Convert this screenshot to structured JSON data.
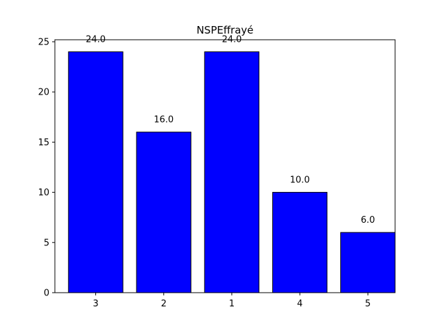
{
  "chart_data": {
    "type": "bar",
    "title": "NSPEffrayé",
    "xlabel": "",
    "ylabel": "",
    "categories": [
      "3",
      "2",
      "1",
      "4",
      "5"
    ],
    "values": [
      24,
      16,
      24,
      10,
      6
    ],
    "value_labels": [
      "24.0",
      "16.0",
      "24.0",
      "10.0",
      "6.0"
    ],
    "ylim": [
      0,
      25.2
    ],
    "yticks": [
      0,
      5,
      10,
      15,
      20,
      25
    ],
    "grid": false,
    "bar_color": "#0000ff",
    "edge_color": "#000000"
  }
}
